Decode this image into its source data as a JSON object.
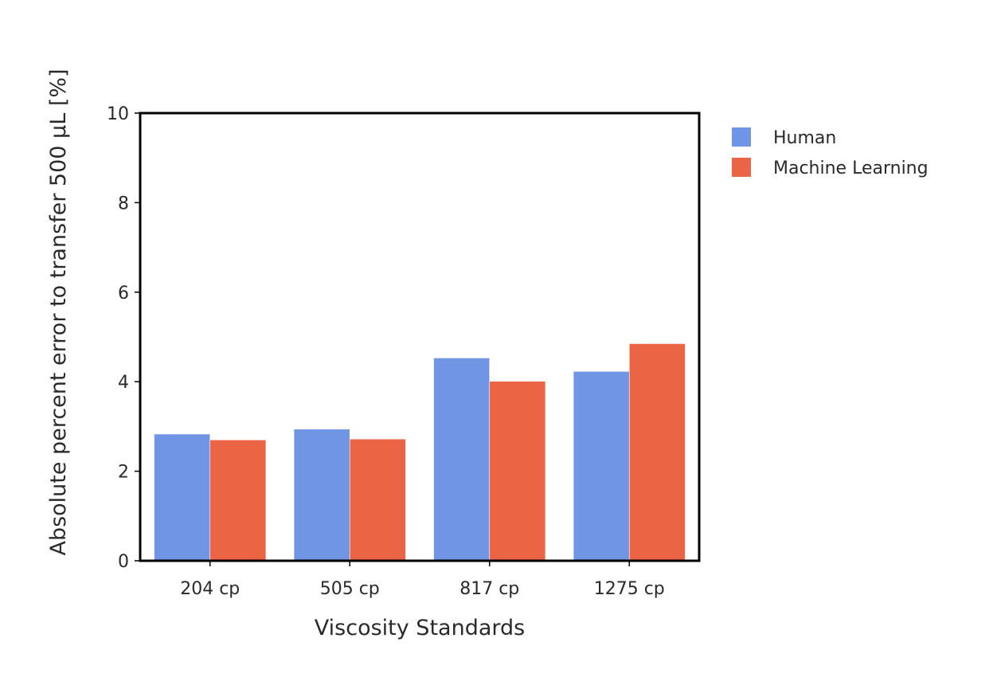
{
  "chart_data": {
    "type": "bar",
    "title": "",
    "xlabel": "Viscosity Standards",
    "ylabel": "Absolute percent error to transfer 500 μL [%]",
    "categories": [
      "204 cp",
      "505 cp",
      "817 cp",
      "1275 cp"
    ],
    "ylim": [
      0,
      10
    ],
    "yticks": [
      0,
      2,
      4,
      6,
      8,
      10
    ],
    "grid": false,
    "legend_position": "top-right",
    "series": [
      {
        "name": "Human",
        "color": "#6f95e4",
        "values": [
          2.83,
          2.94,
          4.53,
          4.23
        ]
      },
      {
        "name": "Machine Learning",
        "color": "#eb6443",
        "values": [
          2.7,
          2.72,
          4.01,
          4.85
        ]
      }
    ]
  }
}
